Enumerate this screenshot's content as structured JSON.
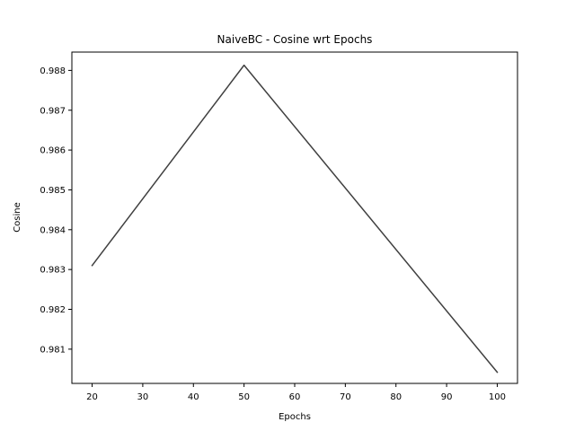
{
  "chart_data": {
    "type": "line",
    "title": "NaiveBC - Cosine wrt Epochs",
    "xlabel": "Epochs",
    "ylabel": "Cosine",
    "x": [
      20,
      50,
      100
    ],
    "series": [
      {
        "values": [
          0.9831,
          0.98813,
          0.98042
        ],
        "color": "#404040"
      }
    ],
    "xlim": [
      16,
      104
    ],
    "ylim": [
      0.98014,
      0.98846
    ],
    "xticks": [
      20,
      30,
      40,
      50,
      60,
      70,
      80,
      90,
      100
    ],
    "xtick_labels": [
      "20",
      "30",
      "40",
      "50",
      "60",
      "70",
      "80",
      "90",
      "100"
    ],
    "yticks": [
      0.981,
      0.982,
      0.983,
      0.984,
      0.985,
      0.986,
      0.987,
      0.988
    ],
    "ytick_labels": [
      "0.981",
      "0.982",
      "0.983",
      "0.984",
      "0.985",
      "0.986",
      "0.987",
      "0.988"
    ],
    "grid": false,
    "legend": "none"
  }
}
